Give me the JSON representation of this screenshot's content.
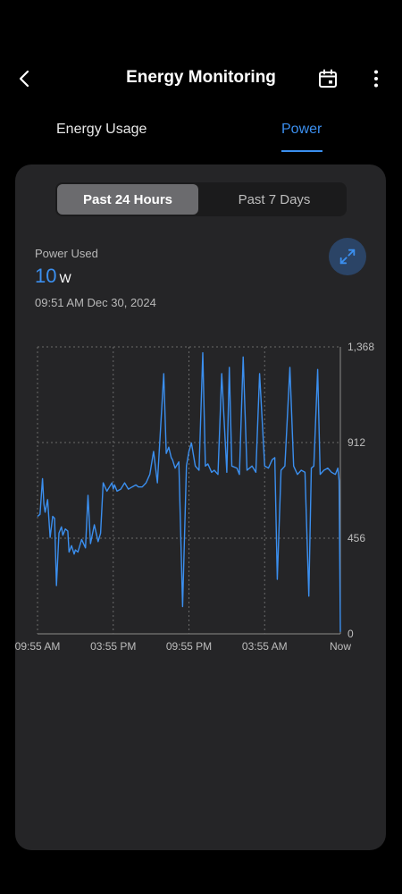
{
  "header": {
    "title": "Energy Monitoring",
    "icons": {
      "back": "back-arrow-icon",
      "calendar": "calendar-icon",
      "more": "more-vertical-icon"
    }
  },
  "tabs": [
    {
      "label": "Energy Usage",
      "active": false
    },
    {
      "label": "Power",
      "active": true
    }
  ],
  "range_selector": {
    "options": [
      "Past 24 Hours",
      "Past 7 Days"
    ],
    "selected": "Past 24 Hours"
  },
  "metric": {
    "label": "Power Used",
    "value": "10",
    "unit": "W",
    "timestamp": "09:51 AM  Dec 30, 2024"
  },
  "colors": {
    "accent": "#3b8fef",
    "card": "#252527",
    "background": "#000000"
  },
  "chart_data": {
    "type": "line",
    "x_labels": [
      "09:55 AM",
      "03:55 PM",
      "09:55 PM",
      "03:55 AM",
      "Now"
    ],
    "y_ticks": [
      "1,368",
      "912",
      "456",
      "0"
    ],
    "ylim": [
      0,
      1368
    ],
    "xlim_hours": [
      0,
      24
    ],
    "grid": true,
    "series": [
      {
        "color": "#3b8fef",
        "x_hours": [
          0.0,
          0.2,
          0.4,
          0.5,
          0.6,
          0.8,
          1.0,
          1.2,
          1.35,
          1.5,
          1.7,
          1.9,
          2.0,
          2.2,
          2.4,
          2.5,
          2.7,
          2.9,
          3.0,
          3.2,
          3.5,
          3.8,
          4.0,
          4.2,
          4.5,
          4.8,
          5.0,
          5.2,
          5.5,
          5.7,
          5.9,
          6.0,
          6.1,
          6.3,
          6.6,
          6.9,
          7.2,
          7.5,
          7.8,
          8.0,
          8.3,
          8.6,
          8.9,
          9.2,
          9.5,
          10.0,
          10.2,
          10.4,
          10.6,
          10.7,
          10.9,
          11.2,
          11.5,
          11.8,
          12.0,
          12.2,
          12.5,
          12.8,
          13.1,
          13.3,
          13.5,
          13.8,
          14.0,
          14.3,
          14.6,
          15.0,
          15.2,
          15.4,
          15.8,
          16.0,
          16.3,
          16.6,
          17.0,
          17.3,
          17.6,
          18.0,
          18.3,
          18.6,
          18.8,
          19.0,
          19.3,
          19.6,
          20.0,
          20.3,
          20.6,
          20.9,
          21.2,
          21.5,
          21.7,
          21.9,
          22.2,
          22.4,
          22.7,
          23.0,
          23.3,
          23.6,
          23.8,
          23.9,
          24.0
        ],
        "values": [
          560,
          570,
          740,
          620,
          580,
          640,
          460,
          560,
          550,
          230,
          480,
          510,
          470,
          500,
          490,
          390,
          420,
          380,
          400,
          390,
          450,
          410,
          660,
          430,
          520,
          440,
          480,
          720,
          680,
          700,
          720,
          690,
          710,
          680,
          690,
          720,
          690,
          700,
          710,
          700,
          700,
          720,
          760,
          870,
          720,
          1240,
          860,
          890,
          840,
          830,
          790,
          820,
          130,
          800,
          870,
          910,
          800,
          780,
          1340,
          800,
          810,
          770,
          780,
          760,
          1240,
          770,
          1270,
          800,
          790,
          760,
          1320,
          780,
          800,
          770,
          1240,
          800,
          790,
          830,
          840,
          260,
          780,
          800,
          1270,
          800,
          760,
          780,
          770,
          180,
          790,
          800,
          1260,
          760,
          780,
          790,
          770,
          760,
          790,
          730,
          10
        ]
      }
    ]
  }
}
